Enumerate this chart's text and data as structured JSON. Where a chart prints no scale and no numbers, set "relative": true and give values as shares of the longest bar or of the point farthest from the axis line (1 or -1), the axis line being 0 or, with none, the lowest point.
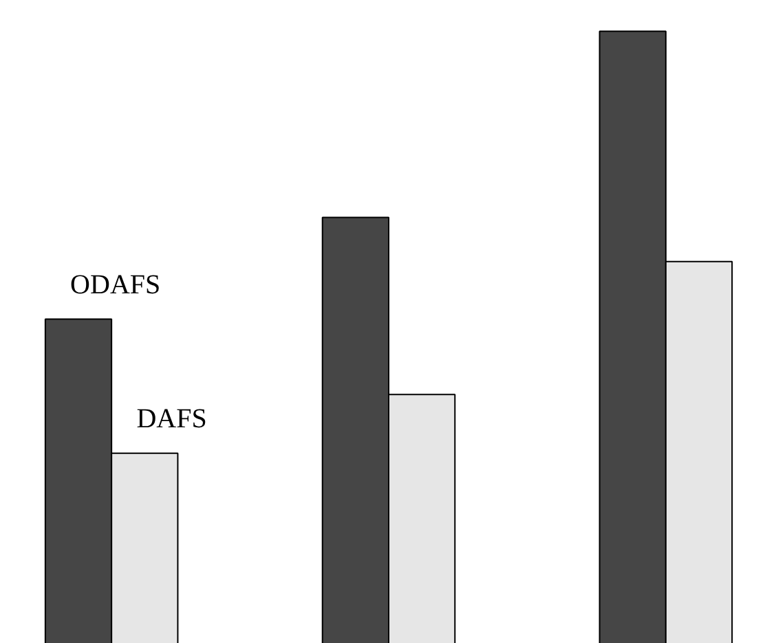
{
  "chart_data": {
    "type": "bar",
    "relative": true,
    "categories": [
      null,
      null,
      null
    ],
    "series": [
      {
        "name": "ODAFS",
        "color": "#464646",
        "values": [
          0.53,
          0.696,
          1
        ]
      },
      {
        "name": "DAFS",
        "color": "#e6e6e6",
        "values": [
          0.311,
          0.407,
          0.624
        ]
      }
    ],
    "grid": false
  }
}
